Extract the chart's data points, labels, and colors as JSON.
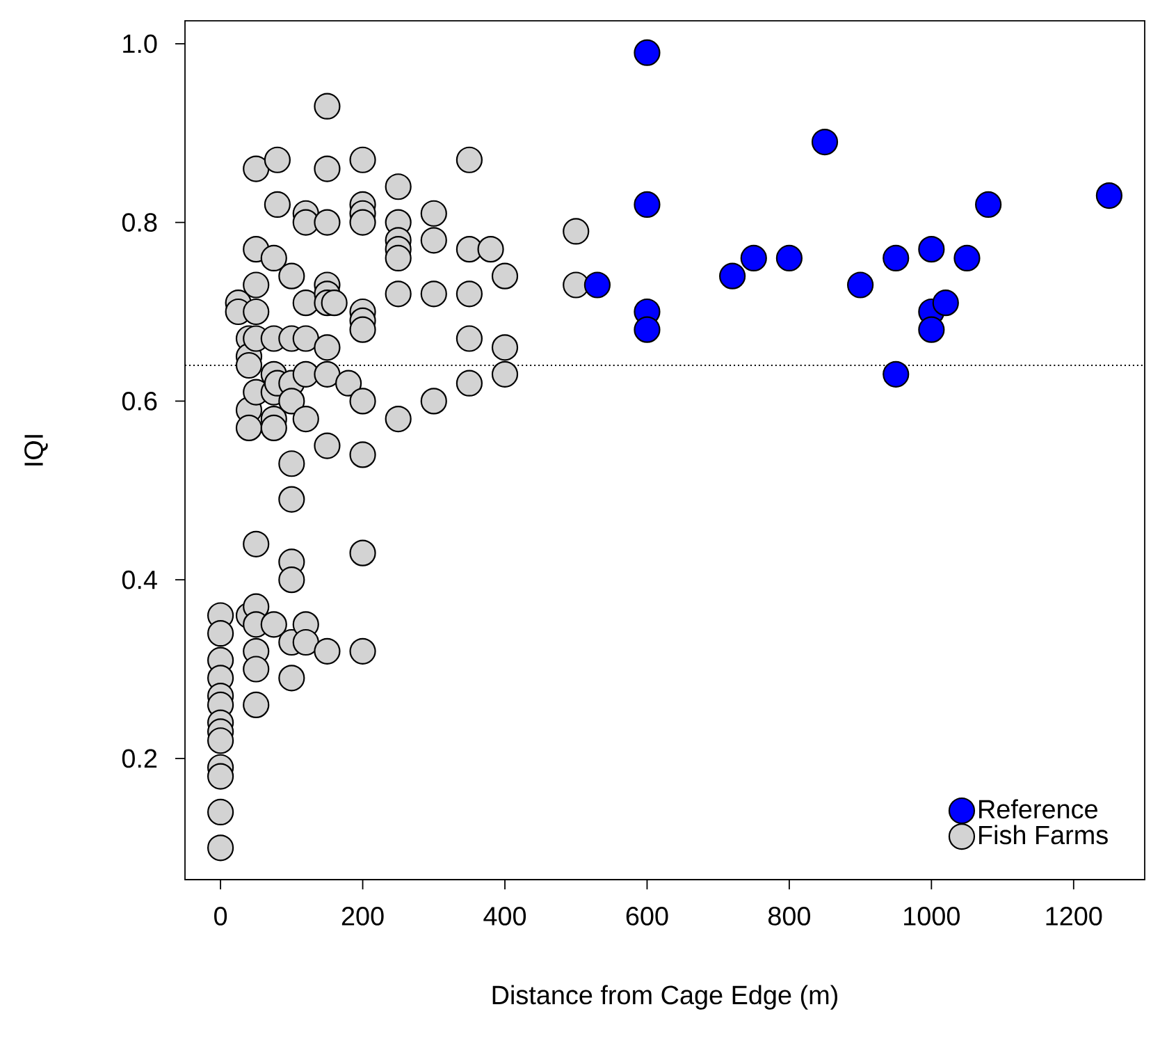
{
  "chart_data": {
    "type": "scatter",
    "xlabel": "Distance from Cage Edge (m)",
    "ylabel": "IQI",
    "xlim": [
      -50,
      1300
    ],
    "ylim": [
      0.0644,
      1.0256
    ],
    "xticks": [
      0,
      200,
      400,
      600,
      800,
      1000,
      1200
    ],
    "yticks": [
      0.2,
      0.4,
      0.6,
      0.8,
      {
        "value": 1.0,
        "label": "1.0"
      }
    ],
    "grid": false,
    "legend": "bottom right",
    "marker": "circle",
    "ref_lines": [
      {
        "axis": "y",
        "value": 0.64,
        "line_style": "dotted",
        "color": "#000000"
      }
    ],
    "series": [
      {
        "name": "Reference",
        "color": "#0000ff",
        "x": [
          530,
          600,
          600,
          600,
          600,
          720,
          750,
          800,
          850,
          900,
          950,
          950,
          1000,
          1000,
          1000,
          1020,
          1050,
          1080,
          1250
        ],
        "values": [
          0.73,
          0.99,
          0.82,
          0.7,
          0.68,
          0.74,
          0.76,
          0.76,
          0.89,
          0.73,
          0.76,
          0.63,
          0.77,
          0.7,
          0.68,
          0.71,
          0.76,
          0.82,
          0.83
        ]
      },
      {
        "name": "Fish Farms",
        "color": "#d3d3d3",
        "x": [
          0,
          0,
          0,
          0,
          0,
          0,
          0,
          0,
          0,
          0,
          0,
          0,
          0,
          25,
          25,
          40,
          40,
          40,
          40,
          40,
          40,
          50,
          50,
          50,
          50,
          50,
          50,
          50,
          50,
          50,
          50,
          50,
          50,
          75,
          75,
          75,
          75,
          75,
          75,
          75,
          80,
          80,
          80,
          100,
          100,
          100,
          100,
          100,
          100,
          100,
          100,
          100,
          100,
          120,
          120,
          120,
          120,
          120,
          120,
          120,
          120,
          150,
          150,
          150,
          150,
          150,
          150,
          150,
          150,
          150,
          150,
          160,
          180,
          200,
          200,
          200,
          200,
          200,
          200,
          200,
          200,
          200,
          200,
          200,
          250,
          250,
          250,
          250,
          250,
          250,
          250,
          300,
          300,
          300,
          300,
          350,
          350,
          350,
          350,
          350,
          380,
          400,
          400,
          400,
          500,
          500
        ],
        "values": [
          0.36,
          0.34,
          0.31,
          0.29,
          0.27,
          0.26,
          0.24,
          0.23,
          0.22,
          0.19,
          0.18,
          0.14,
          0.1,
          0.71,
          0.7,
          0.67,
          0.65,
          0.64,
          0.59,
          0.57,
          0.36,
          0.86,
          0.77,
          0.73,
          0.7,
          0.67,
          0.61,
          0.44,
          0.37,
          0.35,
          0.32,
          0.3,
          0.26,
          0.76,
          0.67,
          0.63,
          0.61,
          0.58,
          0.57,
          0.35,
          0.87,
          0.82,
          0.62,
          0.74,
          0.67,
          0.62,
          0.6,
          0.53,
          0.49,
          0.42,
          0.4,
          0.33,
          0.29,
          0.81,
          0.8,
          0.71,
          0.67,
          0.63,
          0.58,
          0.35,
          0.33,
          0.93,
          0.86,
          0.8,
          0.73,
          0.72,
          0.71,
          0.66,
          0.63,
          0.55,
          0.32,
          0.71,
          0.62,
          0.87,
          0.82,
          0.81,
          0.8,
          0.7,
          0.69,
          0.68,
          0.6,
          0.54,
          0.43,
          0.32,
          0.84,
          0.8,
          0.78,
          0.77,
          0.76,
          0.72,
          0.58,
          0.81,
          0.78,
          0.72,
          0.6,
          0.87,
          0.77,
          0.72,
          0.67,
          0.62,
          0.77,
          0.74,
          0.66,
          0.63,
          0.79,
          0.73
        ]
      }
    ]
  }
}
